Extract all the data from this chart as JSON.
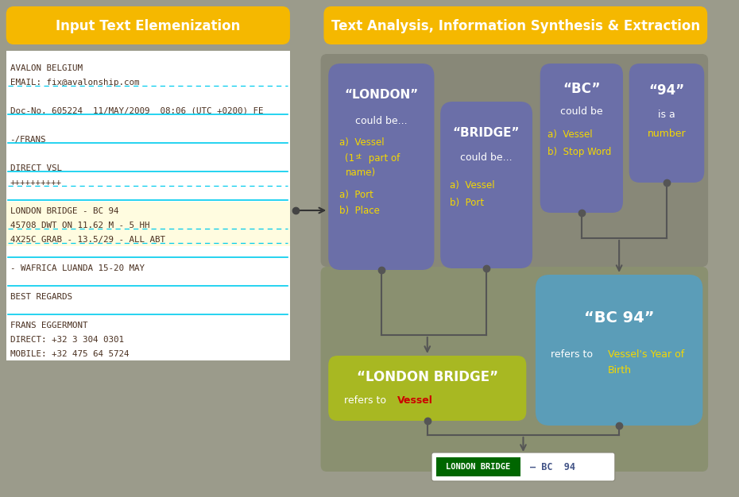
{
  "bg_color": "#9B9B8B",
  "title_left": "Input Text Elemenization",
  "title_right": "Text Analysis, Information Synthesis & Extraction",
  "title_bg": "#F5B800",
  "title_text_color": "#FFFFFF",
  "email_lines": [
    "AVALON BELGIUM",
    "EMAIL: fix@avalonship.com",
    "",
    "Doc-No. 605224  11/MAY/2009  08:06 (UTC +0200) FE",
    "",
    "-/FRANS",
    "",
    "DIRECT VSL",
    "++++++++++",
    "",
    "LONDON BRIDGE - BC 94",
    "45708 DWT ON 11.62 M - 5 HH",
    "4X25C GRAB - 13.5/29 - ALL ABT",
    "",
    "- WAFRICA LUANDA 15-20 MAY",
    "",
    "BEST REGARDS",
    "",
    "FRANS EGGERMONT",
    "DIRECT: +32 3 304 0301",
    "MOBILE: +32 475 64 5724"
  ],
  "box_purple": "#6B6FA8",
  "box_blue": "#5B9DB8",
  "box_green_yellow": "#A8B822",
  "panel_bg": "#8A8A7A",
  "panel_lower_bg": "#8E9A72",
  "arrow_color": "#555555",
  "dot_color": "#555555"
}
